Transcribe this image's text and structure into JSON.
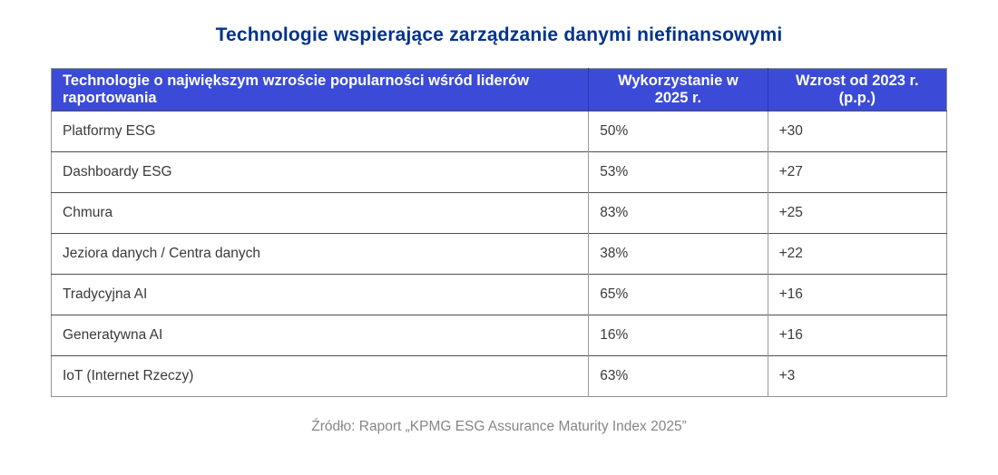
{
  "page": {
    "title": "Technologie wspierające zarządzanie danymi niefinansowymi",
    "source": "Źródło: Raport „KPMG ESG Assurance Maturity Index 2025”"
  },
  "colors": {
    "title_text": "#00338D",
    "header_bg": "#3B4BD8",
    "header_text": "#ffffff",
    "body_text": "#3a3a3a",
    "source_text": "#868686",
    "row_border": "#4f4f4f",
    "column_border": "#9b9b9b"
  },
  "table": {
    "headers": [
      "Technologie o największym wzroście popularności wśród liderów raportowania",
      "Wykorzystanie w 2025 r.",
      "Wzrost od 2023 r. (p.p.)"
    ],
    "rows": [
      [
        "Platformy ESG",
        "50%",
        "+30"
      ],
      [
        "Dashboardy ESG",
        "53%",
        "+27"
      ],
      [
        "Chmura",
        "83%",
        "+25"
      ],
      [
        "Jeziora danych / Centra danych",
        "38%",
        "+22"
      ],
      [
        "Tradycyjna AI",
        "65%",
        "+16"
      ],
      [
        "Generatywna AI",
        "16%",
        "+16"
      ],
      [
        "IoT (Internet Rzeczy)",
        "63%",
        "+3"
      ]
    ]
  },
  "chart_data": {
    "type": "table",
    "title": "Technologie wspierające zarządzanie danymi niefinansowymi",
    "columns": [
      "Technologie o największym wzroście popularności wśród liderów raportowania",
      "Wykorzystanie w 2025 r.",
      "Wzrost od 2023 r. (p.p.)"
    ],
    "categories": [
      "Platformy ESG",
      "Dashboardy ESG",
      "Chmura",
      "Jeziora danych / Centra danych",
      "Tradycyjna AI",
      "Generatywna AI",
      "IoT (Internet Rzeczy)"
    ],
    "series": [
      {
        "name": "Wykorzystanie w 2025 r. (%)",
        "values": [
          50,
          53,
          83,
          38,
          65,
          16,
          63
        ]
      },
      {
        "name": "Wzrost od 2023 r. (p.p.)",
        "values": [
          30,
          27,
          25,
          22,
          16,
          16,
          3
        ]
      }
    ],
    "source": "Źródło: Raport „KPMG ESG Assurance Maturity Index 2025”"
  }
}
